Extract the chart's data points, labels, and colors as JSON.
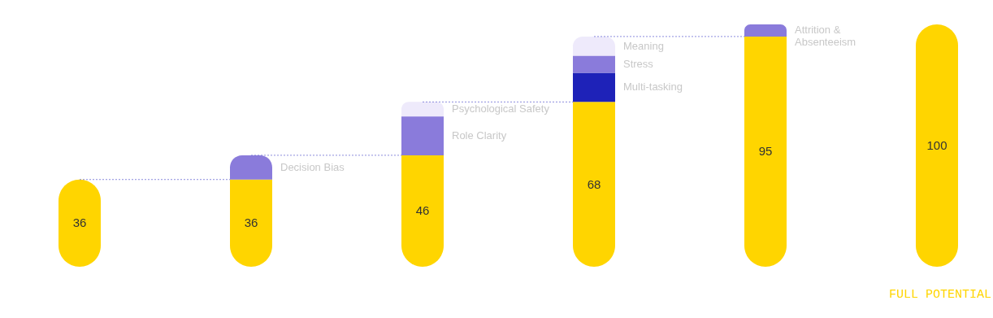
{
  "chart_data": {
    "type": "bar",
    "stacked": true,
    "categories": [
      null,
      null,
      null,
      null,
      null,
      null
    ],
    "series": [
      {
        "color": "#ffd500",
        "values": [
          36,
          36,
          46,
          68,
          95,
          100
        ],
        "value_labels": [
          "36",
          "36",
          "46",
          "68",
          "95",
          "100"
        ]
      },
      {
        "name": "Decision Bias",
        "color": "#8a7bdb",
        "values": [
          null,
          10,
          null,
          null,
          null,
          null
        ]
      },
      {
        "name": "Role Clarity",
        "color": "#8a7bdb",
        "values": [
          null,
          null,
          16,
          null,
          null,
          null
        ]
      },
      {
        "name": "Psychological Safety",
        "color": "#eeeafb",
        "values": [
          null,
          null,
          6,
          null,
          null,
          null
        ]
      },
      {
        "name": "Multi-tasking",
        "color": "#1e22b8",
        "values": [
          null,
          null,
          null,
          12,
          null,
          null
        ]
      },
      {
        "name": "Stress",
        "color": "#8a7bdb",
        "values": [
          null,
          null,
          null,
          7,
          null,
          null
        ]
      },
      {
        "name": "Meaning",
        "color": "#eeeafb",
        "values": [
          null,
          null,
          null,
          8,
          null,
          null
        ]
      },
      {
        "name": "Attrition &\nAbsenteeism",
        "color": "#8a7bdb",
        "values": [
          null,
          null,
          null,
          null,
          5,
          null
        ]
      }
    ],
    "ref_lines": [
      {
        "axis": "y",
        "value": 36,
        "color": "#6f6fd6",
        "line_style": "dotted"
      },
      {
        "axis": "y",
        "value": 46,
        "color": "#6f6fd6",
        "line_style": "dotted"
      },
      {
        "axis": "y",
        "value": 68,
        "color": "#6f6fd6",
        "line_style": "dotted"
      },
      {
        "axis": "y",
        "value": 95,
        "color": "#6f6fd6",
        "line_style": "dotted"
      }
    ],
    "annotations": [
      "FULL POTENTIAL"
    ]
  }
}
